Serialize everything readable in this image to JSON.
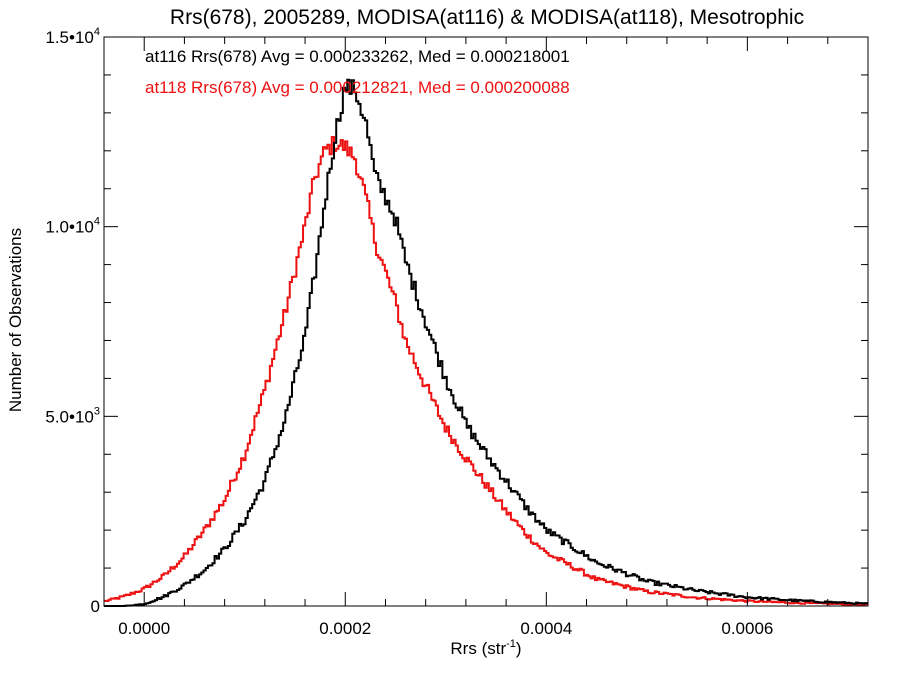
{
  "chart_data": {
    "type": "line",
    "step": true,
    "title": "Rrs(678), 2005289, MODISA(at116) & MODISA(at118), Mesotrophic",
    "xlabel": "Rrs (str",
    "xlabel_sup": "-1",
    "xlabel_end": ")",
    "ylabel": "Number of Observations",
    "xlim": [
      -4e-05,
      0.00072
    ],
    "ylim": [
      0,
      15000
    ],
    "x_ticks": [
      {
        "value": 0.0,
        "label": "0.0000"
      },
      {
        "value": 0.0002,
        "label": "0.0002"
      },
      {
        "value": 0.0004,
        "label": "0.0004"
      },
      {
        "value": 0.0006,
        "label": "0.0006"
      }
    ],
    "y_ticks": [
      {
        "value": 0,
        "base": "0",
        "exp": ""
      },
      {
        "value": 5000,
        "base": "5.0•10",
        "exp": "3"
      },
      {
        "value": 10000,
        "base": "1.0•10",
        "exp": "4"
      },
      {
        "value": 15000,
        "base": "1.5•10",
        "exp": "4"
      }
    ],
    "grid": false,
    "annotations": [
      {
        "text": "at116 Rrs(678) Avg = 0.000233262, Med = 0.000218001",
        "color": "#000000"
      },
      {
        "text": "at118 Rrs(678) Avg = 0.000212821, Med = 0.000200088",
        "color": "#ee1111"
      }
    ],
    "series": [
      {
        "color": "#000000",
        "x": [
          -4e-05,
          -2e-05,
          0.0,
          2e-05,
          4e-05,
          6e-05,
          8e-05,
          0.0001,
          0.00012,
          0.00014,
          0.00016,
          0.00017,
          0.00018,
          0.00019,
          0.0002,
          0.00021,
          0.00022,
          0.00023,
          0.00024,
          0.00025,
          0.00026,
          0.00028,
          0.0003,
          0.00032,
          0.00034,
          0.00036,
          0.00038,
          0.0004,
          0.00045,
          0.0005,
          0.00055,
          0.0006,
          0.00065,
          0.0007,
          0.00072
        ],
        "y": [
          0,
          0,
          50,
          250,
          550,
          950,
          1500,
          2250,
          3300,
          4900,
          7100,
          8800,
          10700,
          12400,
          13700,
          13600,
          12800,
          11300,
          10800,
          10200,
          9100,
          7500,
          6000,
          4800,
          4000,
          3300,
          2600,
          2000,
          1150,
          650,
          400,
          230,
          140,
          80,
          60
        ]
      },
      {
        "color": "#ee1111",
        "x": [
          -4e-05,
          -2e-05,
          0.0,
          2e-05,
          4e-05,
          6e-05,
          8e-05,
          0.0001,
          0.00012,
          0.00014,
          0.00016,
          0.00017,
          0.00018,
          0.00019,
          0.0002,
          0.00021,
          0.00022,
          0.00023,
          0.00024,
          0.00025,
          0.00026,
          0.00028,
          0.0003,
          0.00032,
          0.00034,
          0.00036,
          0.00038,
          0.0004,
          0.00045,
          0.0005,
          0.00055,
          0.0006,
          0.00065,
          0.0007,
          0.00072
        ],
        "y": [
          120,
          250,
          450,
          800,
          1300,
          2000,
          2800,
          4000,
          5700,
          7700,
          10000,
          11300,
          12000,
          12200,
          12100,
          11800,
          10800,
          9600,
          8800,
          8000,
          7000,
          5800,
          4700,
          3900,
          3200,
          2500,
          1900,
          1400,
          700,
          380,
          220,
          130,
          80,
          50,
          40
        ]
      }
    ]
  }
}
